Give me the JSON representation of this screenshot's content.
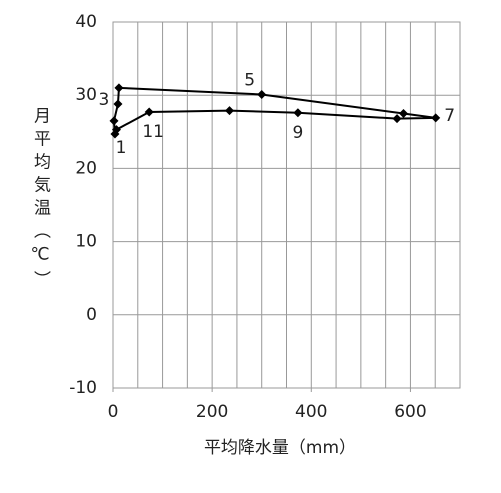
{
  "chart_data": {
    "type": "line",
    "x_label": "平均降水量（mm）",
    "y_label": "月平均気温（℃）",
    "x": [
      4,
      2,
      10,
      12,
      300,
      586,
      651,
      573,
      373,
      235,
      73,
      7
    ],
    "series": [
      {
        "color": "#000000",
        "values": [
          24.7,
          26.5,
          28.8,
          31.0,
          30.1,
          27.5,
          26.9,
          26.8,
          27.6,
          27.9,
          27.7,
          25.3
        ]
      }
    ],
    "point_labels": [
      "1",
      null,
      "3",
      null,
      "5",
      null,
      "7",
      null,
      "9",
      null,
      "11",
      null
    ],
    "xlim": [
      0,
      700
    ],
    "xticks": [
      0,
      200,
      400,
      600
    ],
    "x_gridlines": [
      0,
      50,
      100,
      150,
      200,
      250,
      300,
      350,
      400,
      450,
      500,
      550,
      600,
      650,
      700
    ],
    "ylim": [
      -10,
      40
    ],
    "yticks": [
      -10,
      0,
      10,
      20,
      30,
      40
    ],
    "grid": true
  }
}
